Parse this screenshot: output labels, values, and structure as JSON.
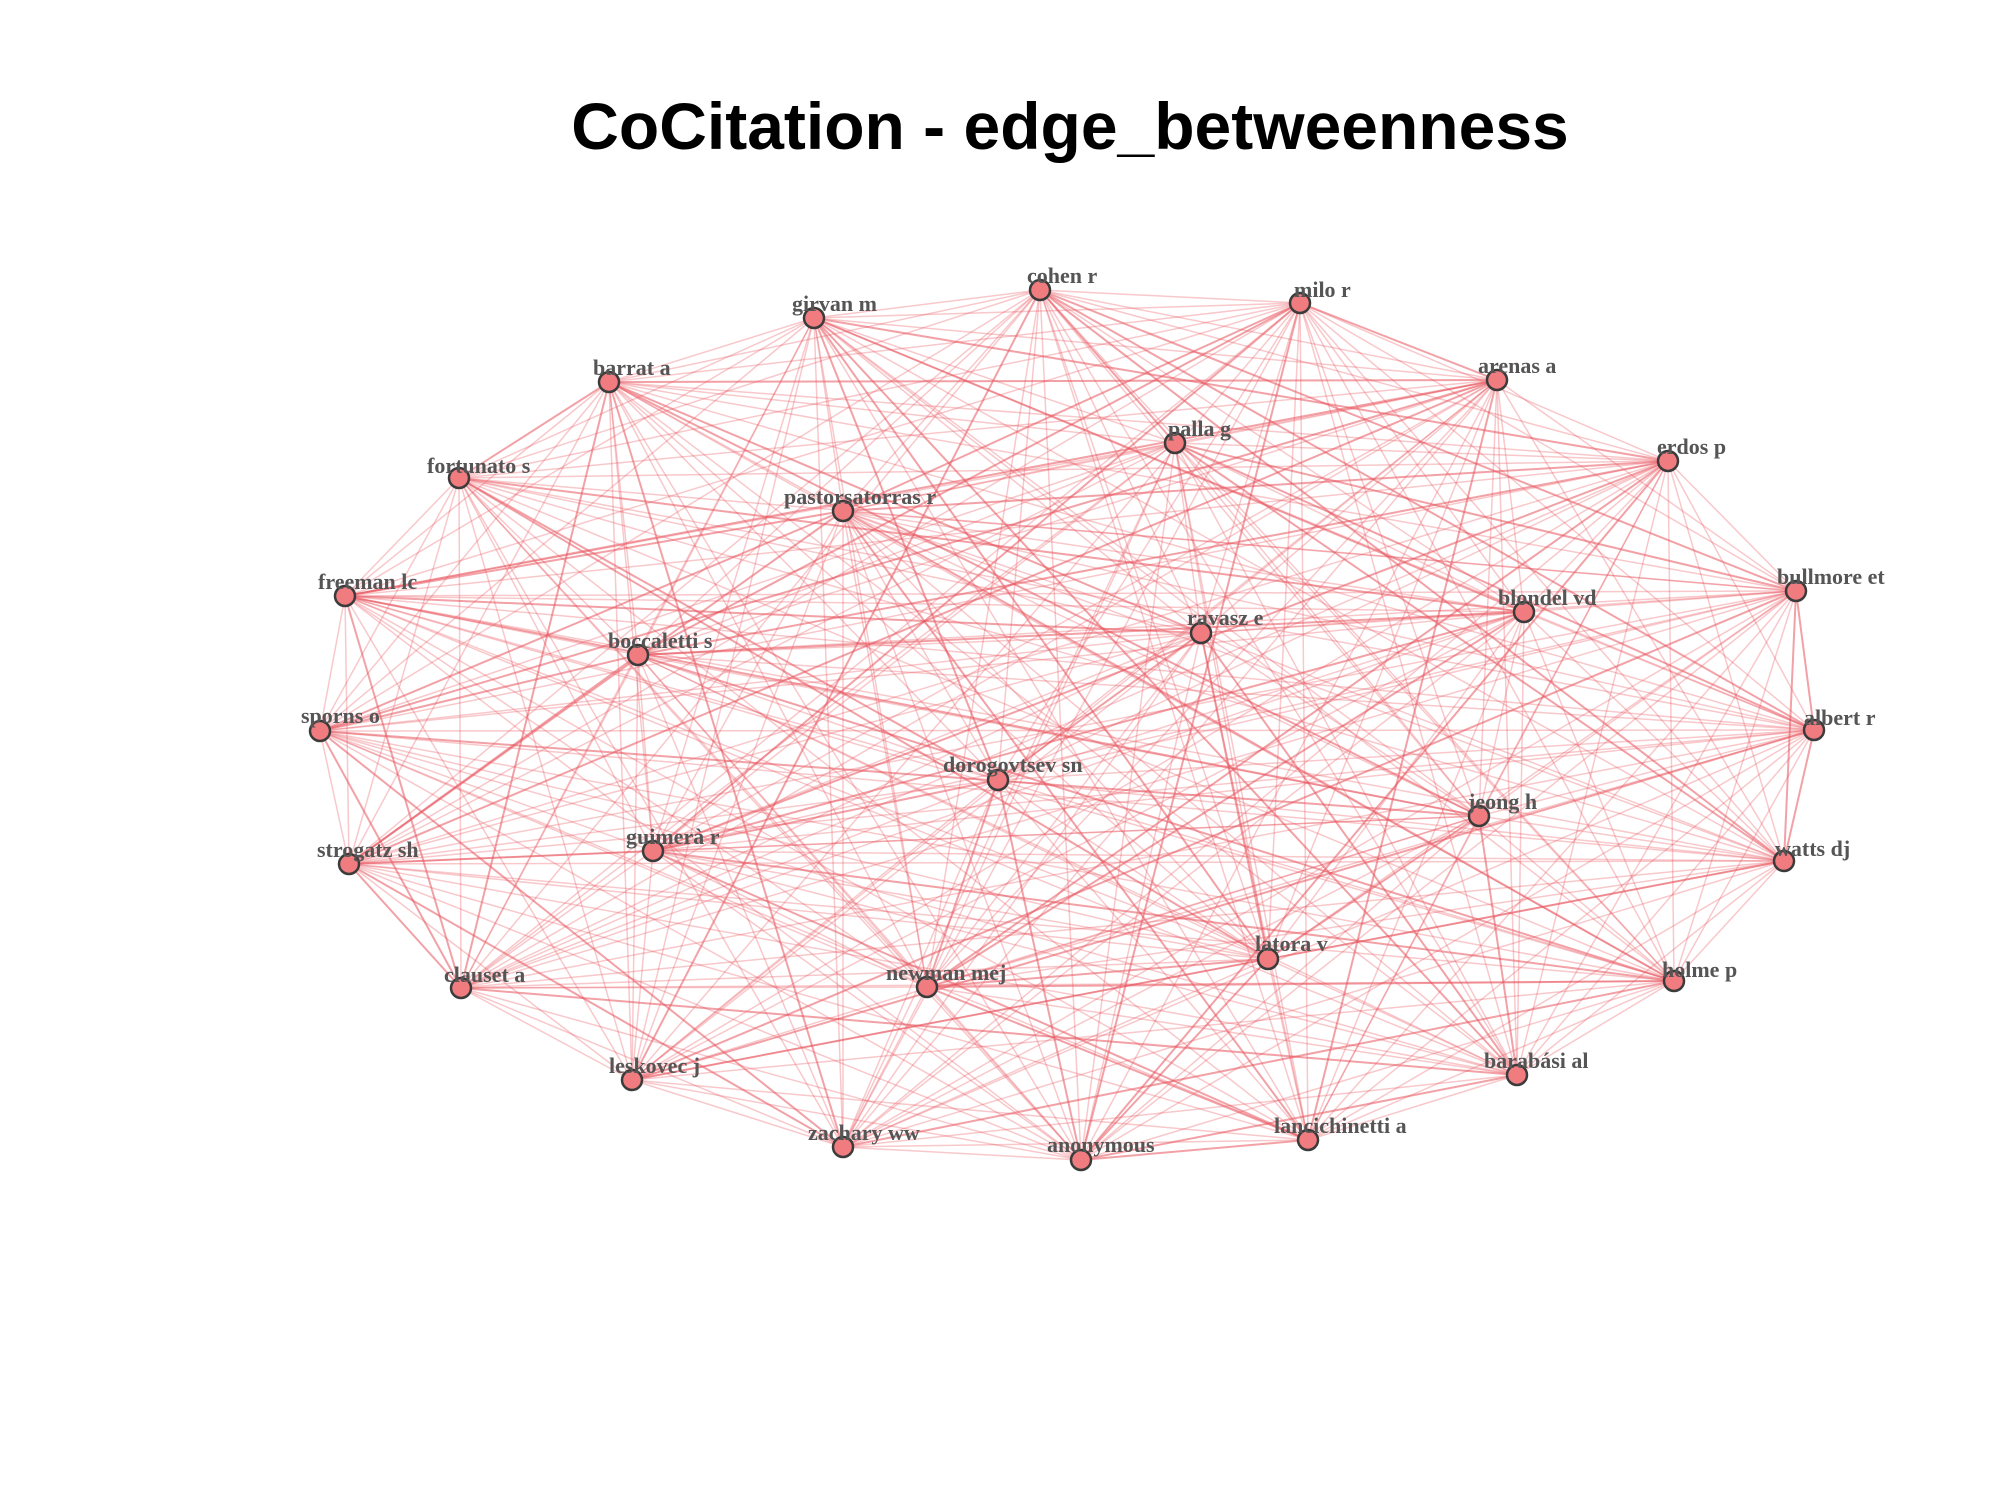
{
  "title": "CoCitation  - edge_betweenness",
  "colors": {
    "edge": "#e8545c",
    "node_fill": "#f07c80",
    "node_stroke": "#3b3b3b",
    "label": "#555555"
  },
  "nodes": [
    {
      "label": "cohen r"
    },
    {
      "label": "milo r"
    },
    {
      "label": "girvan m"
    },
    {
      "label": "arenas a"
    },
    {
      "label": "barrat a"
    },
    {
      "label": "palla g"
    },
    {
      "label": "erdos p"
    },
    {
      "label": "fortunato s"
    },
    {
      "label": "pastorsatorras r"
    },
    {
      "label": "freeman lc"
    },
    {
      "label": "bullmore et"
    },
    {
      "label": "blondel vd"
    },
    {
      "label": "ravasz e"
    },
    {
      "label": "boccaletti s"
    },
    {
      "label": "sporns o"
    },
    {
      "label": "albert r"
    },
    {
      "label": "dorogovtsev sn"
    },
    {
      "label": "jeong h"
    },
    {
      "label": "guimerà r"
    },
    {
      "label": "strogatz sh"
    },
    {
      "label": "watts dj"
    },
    {
      "label": "latora v"
    },
    {
      "label": "clauset a"
    },
    {
      "label": "newman mej"
    },
    {
      "label": "holme p"
    },
    {
      "label": "leskovec j"
    },
    {
      "label": "barabási al"
    },
    {
      "label": "zachary ww"
    },
    {
      "label": "anonymous"
    },
    {
      "label": "lancichinetti a"
    }
  ]
}
